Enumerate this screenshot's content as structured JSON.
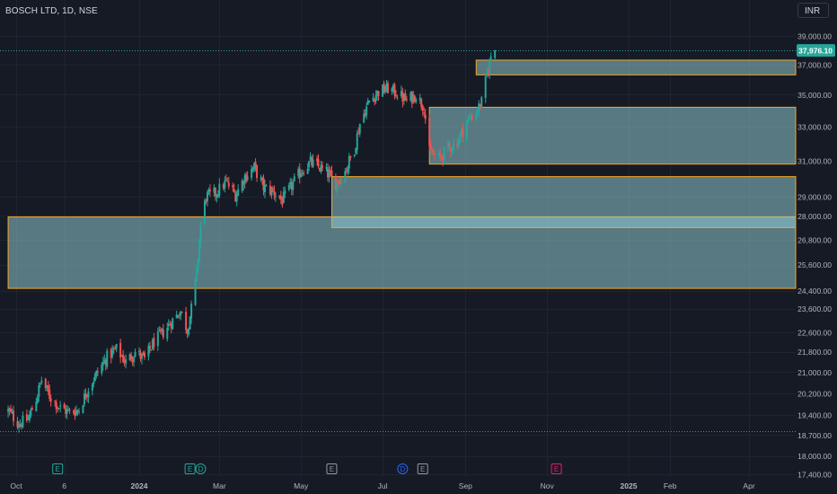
{
  "header": {
    "symbol": "BOSCH LTD, 1D, NSE",
    "currency": "INR"
  },
  "colors": {
    "background": "#161a25",
    "up": "#26a69a",
    "down": "#ef5350",
    "zone_fill": "#8fc8cf",
    "zone_border": "#f5a623",
    "last_price_bg": "#26a69a",
    "axis_text": "#b2b5be"
  },
  "chart_data": {
    "type": "candlestick",
    "symbol": "BOSCH LTD",
    "interval": "1D",
    "exchange": "NSE",
    "currency": "INR",
    "last_price": "37,976.10",
    "y_axis": {
      "scale": "log",
      "ylim": [
        17300,
        40000
      ],
      "ticks": [
        "39,000.00",
        "37,000.00",
        "35,000.00",
        "33,000.00",
        "31,000.00",
        "29,000.00",
        "28,000.00",
        "26,800.00",
        "25,600.00",
        "24,400.00",
        "23,600.00",
        "22,600.00",
        "21,800.00",
        "21,000.00",
        "20,200.00",
        "19,400.00",
        "18,700.00",
        "18,000.00",
        "17,400.00"
      ]
    },
    "x_axis": {
      "ticks": [
        "Oct",
        "6",
        "2024",
        "Mar",
        "May",
        "Jul",
        "Sep",
        "Nov",
        "2025",
        "Feb",
        "Apr"
      ],
      "bold_ticks": [
        "2024",
        "2025"
      ]
    },
    "price_lines": [
      {
        "value": 37976.1,
        "style": "dotted",
        "color": "#26a69a"
      },
      {
        "value": 18850,
        "style": "dotted",
        "color": "#787b86"
      }
    ],
    "zones": [
      {
        "name": "demand-zone-1",
        "low": 24500,
        "high": 27950,
        "from": "2023-09-25",
        "to": "2025-04-30"
      },
      {
        "name": "demand-zone-2",
        "low": 27400,
        "high": 30100,
        "from": "2024-05-24",
        "to": "2025-04-30"
      },
      {
        "name": "demand-zone-3",
        "low": 30800,
        "high": 34200,
        "from": "2024-08-05",
        "to": "2025-04-30"
      },
      {
        "name": "demand-zone-4",
        "low": 36300,
        "high": 37300,
        "from": "2024-09-09",
        "to": "2025-04-30"
      }
    ],
    "price_path": [
      [
        "2023-09-25",
        19550
      ],
      [
        "2023-10-03",
        19100
      ],
      [
        "2023-10-10",
        19250
      ],
      [
        "2023-10-16",
        20000
      ],
      [
        "2023-10-20",
        20700
      ],
      [
        "2023-10-26",
        20100
      ],
      [
        "2023-11-03",
        19650
      ],
      [
        "2023-11-10",
        19500
      ],
      [
        "2023-11-17",
        19600
      ],
      [
        "2023-11-24",
        20400
      ],
      [
        "2023-12-01",
        21000
      ],
      [
        "2023-12-08",
        21600
      ],
      [
        "2023-12-15",
        21900
      ],
      [
        "2023-12-22",
        21400
      ],
      [
        "2023-12-29",
        21800
      ],
      [
        "2024-01-05",
        21500
      ],
      [
        "2024-01-12",
        22200
      ],
      [
        "2024-01-19",
        22600
      ],
      [
        "2024-01-26",
        23100
      ],
      [
        "2024-02-01",
        23500
      ],
      [
        "2024-02-06",
        22700
      ],
      [
        "2024-02-09",
        23600
      ],
      [
        "2024-02-13",
        25200
      ],
      [
        "2024-02-16",
        27500
      ],
      [
        "2024-02-20",
        29000
      ],
      [
        "2024-02-27",
        29200
      ],
      [
        "2024-03-06",
        29800
      ],
      [
        "2024-03-13",
        29100
      ],
      [
        "2024-03-20",
        30100
      ],
      [
        "2024-03-27",
        30600
      ],
      [
        "2024-04-03",
        29500
      ],
      [
        "2024-04-10",
        29300
      ],
      [
        "2024-04-17",
        28800
      ],
      [
        "2024-04-24",
        29600
      ],
      [
        "2024-05-01",
        30400
      ],
      [
        "2024-05-08",
        30900
      ],
      [
        "2024-05-15",
        30600
      ],
      [
        "2024-05-22",
        30200
      ],
      [
        "2024-05-27",
        29700
      ],
      [
        "2024-06-03",
        30400
      ],
      [
        "2024-06-10",
        31700
      ],
      [
        "2024-06-14",
        33200
      ],
      [
        "2024-06-21",
        34600
      ],
      [
        "2024-06-28",
        35200
      ],
      [
        "2024-07-05",
        35400
      ],
      [
        "2024-07-12",
        35100
      ],
      [
        "2024-07-19",
        34600
      ],
      [
        "2024-07-26",
        35000
      ],
      [
        "2024-08-01",
        34200
      ],
      [
        "2024-08-05",
        31500
      ],
      [
        "2024-08-12",
        31100
      ],
      [
        "2024-08-19",
        31700
      ],
      [
        "2024-08-26",
        32100
      ],
      [
        "2024-09-02",
        33300
      ],
      [
        "2024-09-09",
        33900
      ],
      [
        "2024-09-13",
        34500
      ],
      [
        "2024-09-17",
        36300
      ],
      [
        "2024-09-20",
        37600
      ],
      [
        "2024-09-23",
        37976.1
      ]
    ],
    "event_markers": [
      {
        "label": "E",
        "date": "2023-11-01",
        "color": "#26a69a",
        "shape": "square"
      },
      {
        "label": "E",
        "date": "2024-02-08",
        "color": "#26a69a",
        "shape": "square"
      },
      {
        "label": "D",
        "date": "2024-02-16",
        "color": "#26a69a",
        "shape": "circle"
      },
      {
        "label": "E",
        "date": "2024-05-24",
        "color": "#9598a1",
        "shape": "square"
      },
      {
        "label": "D",
        "date": "2024-07-16",
        "color": "#2962ff",
        "shape": "circle"
      },
      {
        "label": "E",
        "date": "2024-07-31",
        "color": "#9598a1",
        "shape": "square"
      },
      {
        "label": "E",
        "date": "2024-11-08",
        "color": "#e91e63",
        "shape": "square"
      }
    ]
  }
}
